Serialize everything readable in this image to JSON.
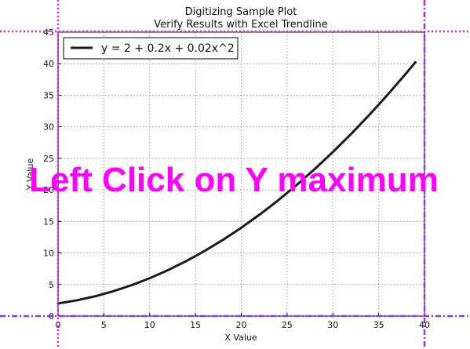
{
  "chart_data": {
    "type": "line",
    "title": "Digitizing Sample Plot",
    "subtitle": "Verify Results with Excel Trendline",
    "xlabel": "X Value",
    "ylabel": "Y Value",
    "xlim": [
      0,
      40
    ],
    "ylim": [
      0,
      45
    ],
    "xticks": [
      0,
      5,
      10,
      15,
      20,
      25,
      30,
      35,
      40
    ],
    "yticks": [
      0,
      5,
      10,
      15,
      20,
      25,
      30,
      35,
      40,
      45
    ],
    "grid": true,
    "legend_position": "top-left",
    "series": [
      {
        "name": "y = 2 + 0.2x + 0.02x^2",
        "color": "#1a1a1a",
        "x": [
          0,
          2,
          4,
          6,
          8,
          10,
          12,
          14,
          16,
          18,
          20,
          22,
          24,
          26,
          28,
          30,
          32,
          34,
          36,
          38,
          39
        ],
        "y": [
          2.0,
          2.48,
          3.12,
          3.92,
          4.88,
          6.0,
          7.28,
          8.72,
          10.32,
          12.08,
          14.0,
          16.08,
          18.32,
          20.72,
          23.28,
          26.0,
          28.88,
          31.92,
          35.12,
          38.48,
          40.22
        ]
      }
    ]
  },
  "overlay": {
    "instruction": "Left Click on Y maximum",
    "color": "#ff00ff",
    "guide_color_magenta": "#dd22dd",
    "guide_color_purple": "#9933ee"
  }
}
